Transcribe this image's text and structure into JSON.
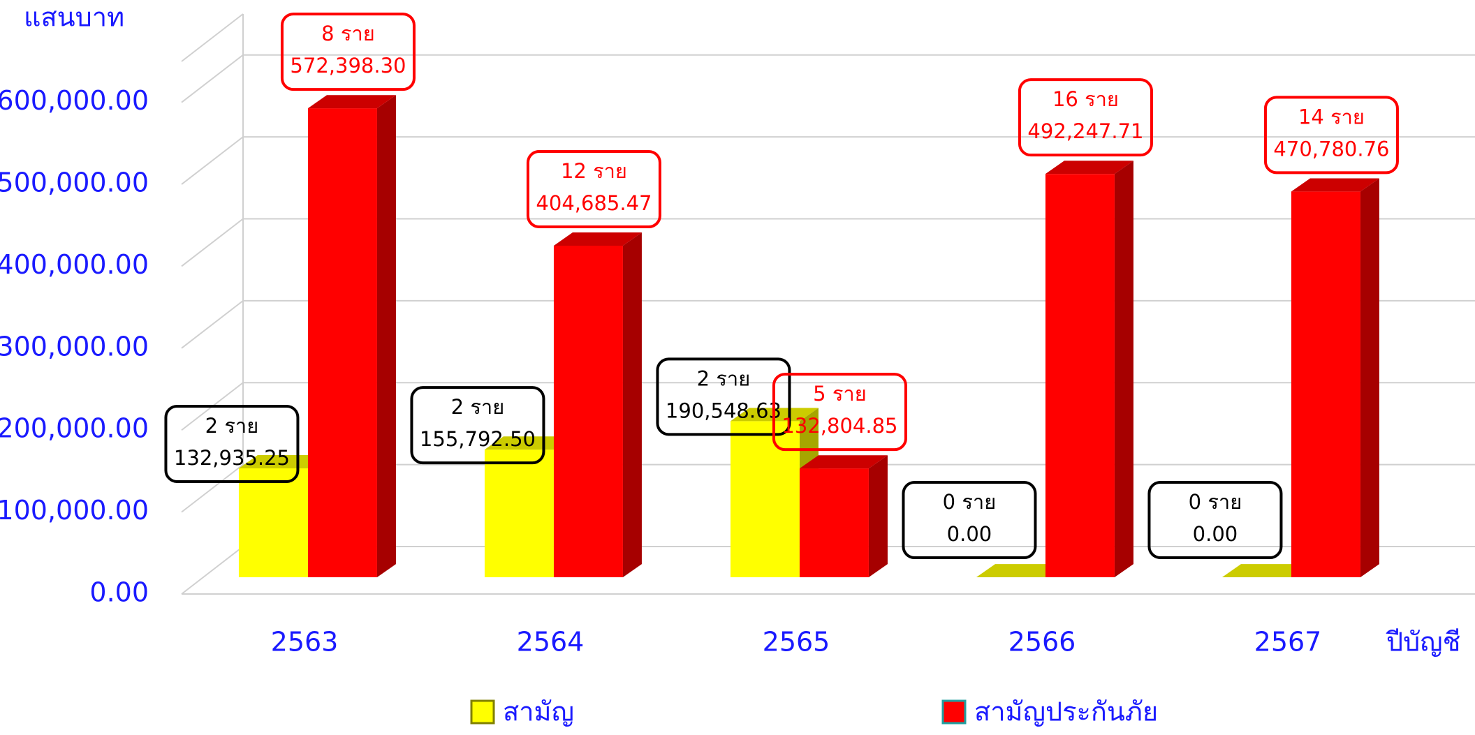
{
  "chart_data": {
    "type": "bar",
    "y_label": "แสนบาท",
    "x_label": "ปีบัญชี",
    "categories": [
      "2563",
      "2564",
      "2565",
      "2566",
      "2567"
    ],
    "series": [
      {
        "name": "สามัญ",
        "color": "#ffff00",
        "values": [
          132935.25,
          155792.5,
          190548.63,
          0,
          0
        ],
        "value_labels": [
          "132,935.25",
          "155,792.50",
          "190,548.63",
          "0.00",
          "0.00"
        ],
        "count_labels": [
          "2 ราย",
          "2 ราย",
          "2 ราย",
          "0 ราย",
          "0 ราย"
        ]
      },
      {
        "name": "สามัญประกันภัย",
        "color": "#ff0000",
        "values": [
          572398.3,
          404685.47,
          132804.85,
          492247.71,
          470780.76
        ],
        "value_labels": [
          "572,398.30",
          "404,685.47",
          "132,804.85",
          "492,247.71",
          "470,780.76"
        ],
        "count_labels": [
          "8 ราย",
          "12 ราย",
          "5 ราย",
          "16 ราย",
          "14 ราย"
        ]
      }
    ],
    "ylim": [
      0,
      650000
    ],
    "yticks": [
      {
        "value": 0,
        "label": "0.00"
      },
      {
        "value": 100000,
        "label": "100,000.00"
      },
      {
        "value": 200000,
        "label": "200,000.00"
      },
      {
        "value": 300000,
        "label": "300,000.00"
      },
      {
        "value": 400000,
        "label": "400,000.00"
      },
      {
        "value": 500000,
        "label": "500,000.00"
      },
      {
        "value": 600000,
        "label": "600,000.00"
      }
    ],
    "grid": true,
    "legend": "bottom"
  }
}
